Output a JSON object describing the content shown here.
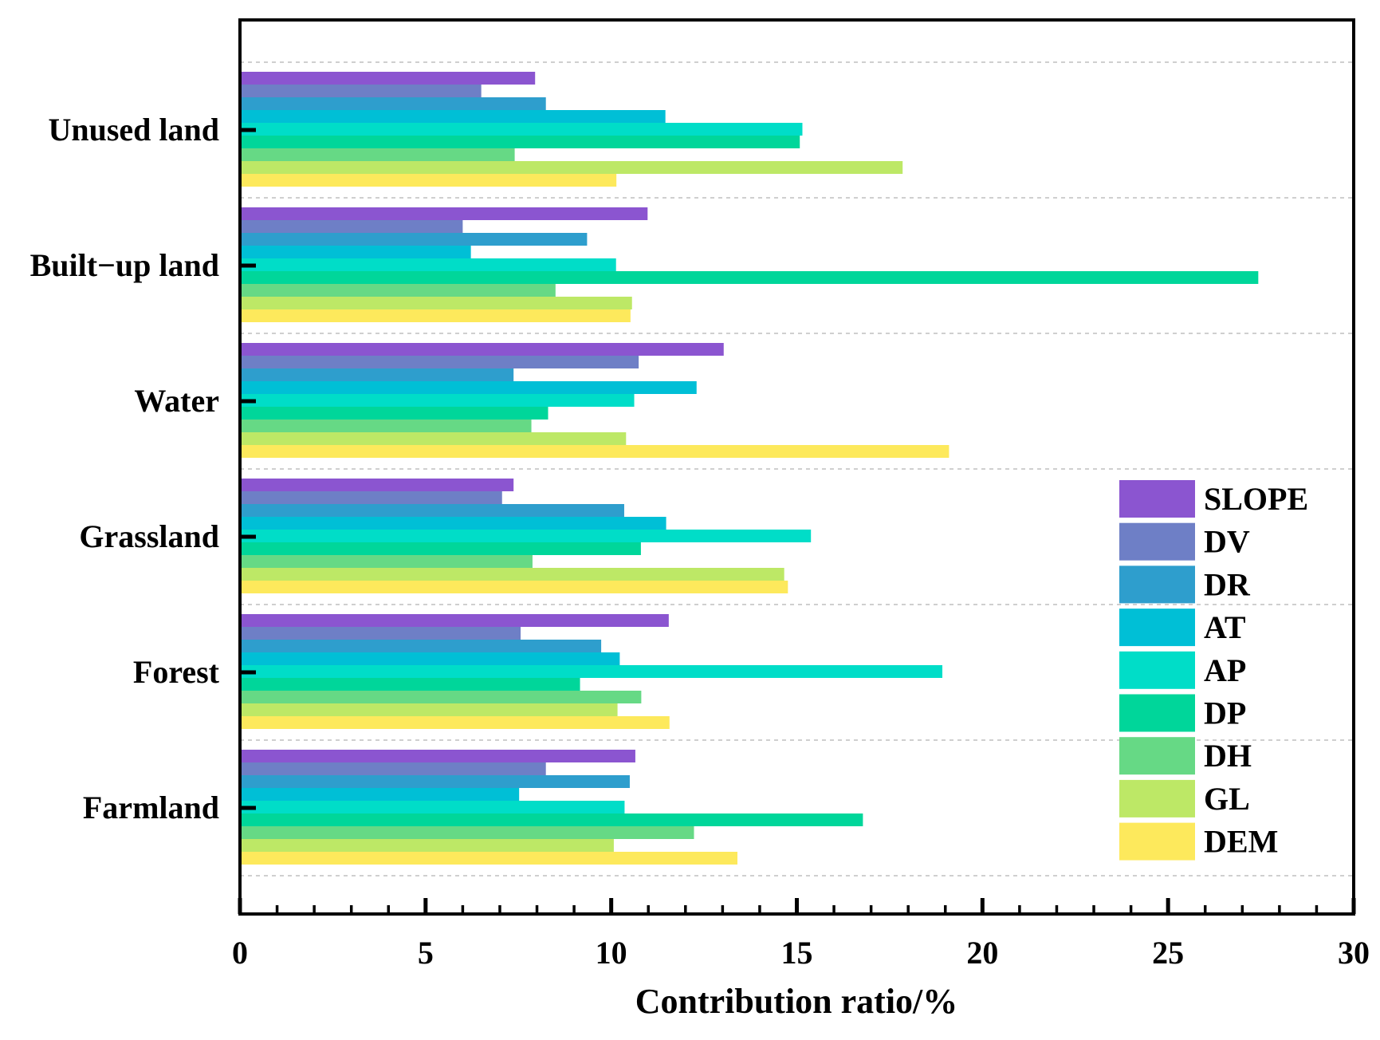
{
  "chart_data": {
    "type": "bar",
    "orientation": "horizontal",
    "title": "",
    "xlabel": "Contribution ratio/%",
    "ylabel": "",
    "xlim": [
      0,
      30
    ],
    "xticks": [
      0,
      5,
      10,
      15,
      20,
      25,
      30
    ],
    "grid": "dashed horizontal separators between categories",
    "legend_position": "right",
    "categories": [
      "Unused land",
      "Built−up land",
      "Water",
      "Grassland",
      "Forest",
      "Farmland"
    ],
    "series": [
      {
        "name": "SLOPE",
        "color": "#8b55d0",
        "values": [
          7.95,
          10.98,
          13.03,
          7.37,
          11.55,
          10.65
        ]
      },
      {
        "name": "DV",
        "color": "#6e7fc6",
        "values": [
          6.5,
          6.0,
          10.74,
          7.06,
          7.56,
          8.24
        ]
      },
      {
        "name": "DR",
        "color": "#2e9ecd",
        "values": [
          8.24,
          9.35,
          7.37,
          10.35,
          9.73,
          10.5
        ]
      },
      {
        "name": "AT",
        "color": "#00bfd6",
        "values": [
          11.46,
          6.22,
          12.3,
          11.48,
          10.23,
          7.52
        ]
      },
      {
        "name": "AP",
        "color": "#00ddc8",
        "values": [
          15.15,
          10.13,
          10.62,
          15.38,
          18.92,
          10.36
        ]
      },
      {
        "name": "DP",
        "color": "#00d69a",
        "values": [
          15.08,
          27.43,
          8.3,
          10.8,
          9.16,
          16.78
        ]
      },
      {
        "name": "DH",
        "color": "#66d985",
        "values": [
          7.4,
          8.5,
          7.85,
          7.88,
          10.81,
          12.23
        ]
      },
      {
        "name": "GL",
        "color": "#bde866",
        "values": [
          17.85,
          10.56,
          10.4,
          14.66,
          10.17,
          10.07
        ]
      },
      {
        "name": "DEM",
        "color": "#fde95c",
        "values": [
          10.14,
          10.52,
          19.1,
          14.76,
          11.57,
          13.4
        ]
      }
    ]
  }
}
